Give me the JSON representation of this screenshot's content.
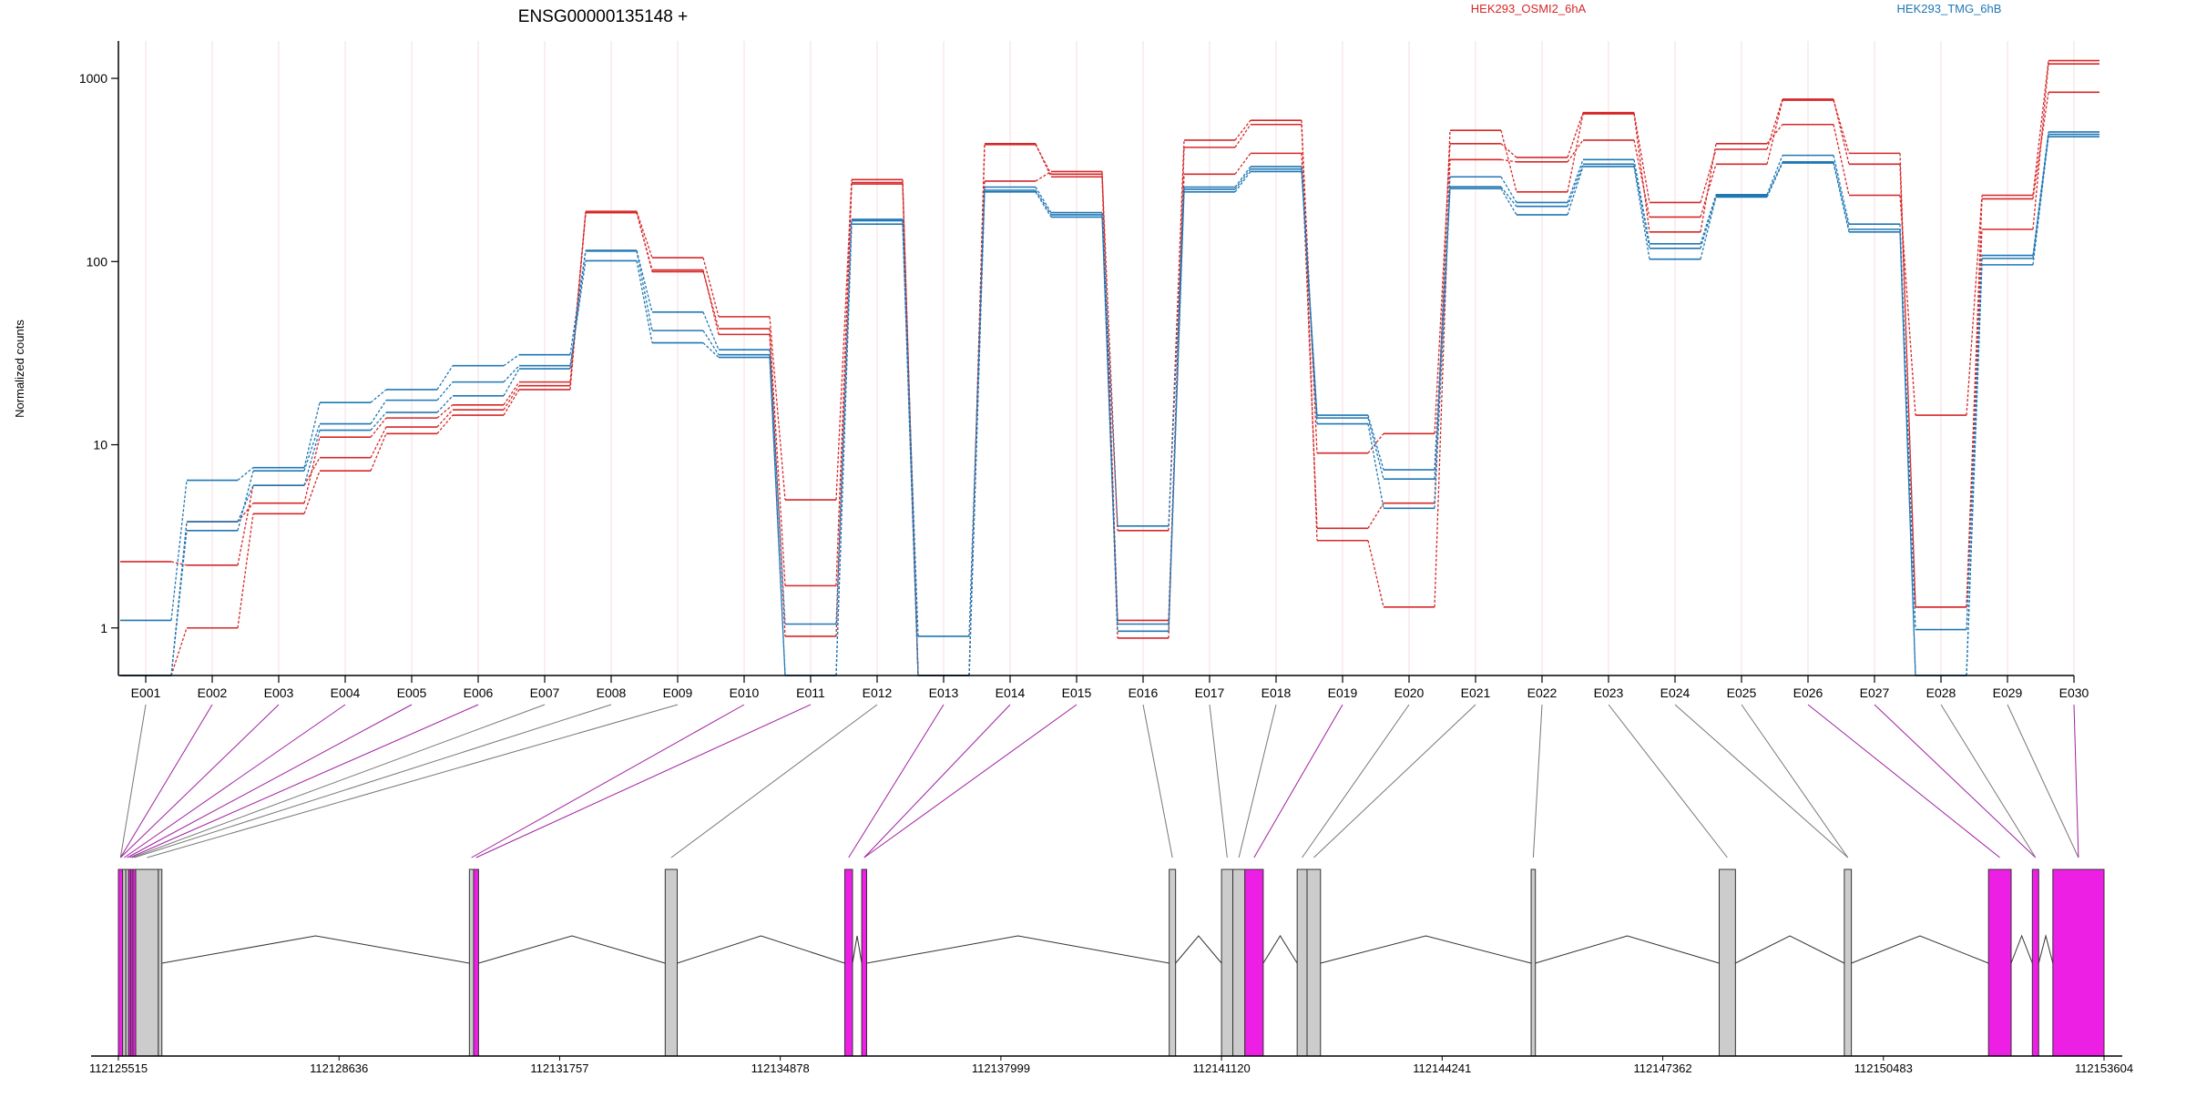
{
  "chart_data": {
    "type": "line",
    "title": "ENSG00000135148 +",
    "ylabel": "Normalized counts",
    "yscale": "log",
    "ylim": [
      0.55,
      1600
    ],
    "yticks": [
      1,
      10,
      100,
      1000
    ],
    "ytick_labels": [
      "1",
      "10",
      "100",
      "1000"
    ],
    "grid": "vertical",
    "legend": "top-right",
    "categories": [
      "E001",
      "E002",
      "E003",
      "E004",
      "E005",
      "E006",
      "E007",
      "E008",
      "E009",
      "E010",
      "E011",
      "E012",
      "E013",
      "E014",
      "E015",
      "E016",
      "E017",
      "E018",
      "E019",
      "E020",
      "E021",
      "E022",
      "E023",
      "E024",
      "E025",
      "E026",
      "E027",
      "E028",
      "E029",
      "E030"
    ],
    "groups": [
      {
        "name": "HEK293_OSMI2_6hA",
        "color": "#d62728"
      },
      {
        "name": "HEK293_TMG_6hB",
        "color": "#1f77b4"
      }
    ],
    "series": [
      {
        "group": 0,
        "values": [
          0.55,
          1.0,
          4.2,
          7.2,
          11.5,
          14.5,
          20,
          185,
          88,
          43,
          1.7,
          265,
          0.55,
          275,
          310,
          1.1,
          300,
          390,
          3.5,
          4.8,
          520,
          240,
          640,
          145,
          440,
          560,
          230,
          14.5,
          230,
          1250
        ]
      },
      {
        "group": 0,
        "values": [
          2.3,
          2.2,
          6.0,
          8.5,
          12.5,
          15.5,
          21,
          185,
          90,
          40,
          0.9,
          270,
          0.55,
          440,
          290,
          0.88,
          420,
          560,
          9.0,
          11.5,
          440,
          370,
          650,
          210,
          410,
          770,
          340,
          1.3,
          150,
          1200
        ]
      },
      {
        "group": 0,
        "values": [
          0.55,
          3.8,
          4.8,
          11,
          14,
          16.5,
          22,
          188,
          105,
          50,
          5.0,
          280,
          0.55,
          435,
          300,
          3.4,
          460,
          590,
          3.0,
          1.3,
          360,
          350,
          460,
          175,
          340,
          760,
          390,
          1.3,
          220,
          840
        ]
      },
      {
        "group": 1,
        "values": [
          1.1,
          6.4,
          7.5,
          17,
          20,
          27,
          31,
          115,
          53,
          33,
          1.05,
          170,
          0.9,
          255,
          185,
          3.6,
          255,
          330,
          14.5,
          7.3,
          290,
          210,
          360,
          125,
          232,
          380,
          160,
          0.98,
          108,
          510
        ]
      },
      {
        "group": 1,
        "values": [
          0.55,
          3.4,
          7.2,
          13,
          17.5,
          22,
          27,
          101,
          36,
          30,
          0.55,
          160,
          0.55,
          240,
          175,
          0.96,
          240,
          310,
          13,
          4.5,
          250,
          180,
          330,
          103,
          225,
          345,
          145,
          0.55,
          96,
          480
        ]
      },
      {
        "group": 1,
        "values": [
          0.55,
          3.8,
          6.0,
          12,
          15,
          18.5,
          26,
          114,
          42,
          31,
          0.55,
          167,
          0.55,
          245,
          180,
          1.05,
          248,
          320,
          14,
          6.5,
          256,
          200,
          340,
          118,
          228,
          350,
          150,
          0.55,
          104,
          495
        ]
      }
    ],
    "gene_model": {
      "coordinate_ticks": [
        "112125515",
        "112128636",
        "112131757",
        "112134878",
        "112137999",
        "112141120",
        "112144241",
        "112147362",
        "112150483",
        "112153604"
      ],
      "coord_range": [
        112125515,
        112153604
      ],
      "exons": [
        {
          "id": "E001",
          "start": 112125515,
          "end": 112125575,
          "significant": true
        },
        {
          "id": "E002",
          "start": 112125575,
          "end": 112125620,
          "significant": false
        },
        {
          "id": "E003",
          "start": 112125620,
          "end": 112125660,
          "significant": false
        },
        {
          "id": "E004",
          "start": 112125660,
          "end": 112125690,
          "significant": true
        },
        {
          "id": "E005",
          "start": 112125690,
          "end": 112125720,
          "significant": true
        },
        {
          "id": "E006",
          "start": 112125720,
          "end": 112125760,
          "significant": true
        },
        {
          "id": "E007",
          "start": 112125760,
          "end": 112126080,
          "significant": false
        },
        {
          "id": "E008",
          "start": 112126080,
          "end": 112126130,
          "significant": false
        },
        {
          "id": "E009",
          "start": 112130480,
          "end": 112130540,
          "significant": false
        },
        {
          "id": "E010",
          "start": 112130540,
          "end": 112130610,
          "significant": true
        },
        {
          "id": "E011",
          "start": 112133250,
          "end": 112133420,
          "significant": false
        },
        {
          "id": "E012",
          "start": 112135790,
          "end": 112135900,
          "significant": true
        },
        {
          "id": "E013",
          "start": 112136030,
          "end": 112136100,
          "significant": true
        },
        {
          "id": "E014",
          "start": 112140380,
          "end": 112140470,
          "significant": false
        },
        {
          "id": "E015",
          "start": 112141120,
          "end": 112141280,
          "significant": false
        },
        {
          "id": "E016",
          "start": 112141280,
          "end": 112141450,
          "significant": false
        },
        {
          "id": "E017",
          "start": 112141450,
          "end": 112141710,
          "significant": true
        },
        {
          "id": "E018",
          "start": 112142190,
          "end": 112142330,
          "significant": false
        },
        {
          "id": "E019",
          "start": 112142330,
          "end": 112142520,
          "significant": false
        },
        {
          "id": "E020",
          "start": 112145500,
          "end": 112145560,
          "significant": false
        },
        {
          "id": "E021",
          "start": 112148160,
          "end": 112148390,
          "significant": false
        },
        {
          "id": "E022",
          "start": 112149930,
          "end": 112150030,
          "significant": false
        },
        {
          "id": "E023",
          "start": 112151970,
          "end": 112152290,
          "significant": true
        },
        {
          "id": "E024",
          "start": 112152590,
          "end": 112152680,
          "significant": true
        },
        {
          "id": "E025",
          "start": 112152880,
          "end": 112153604,
          "significant": true
        }
      ],
      "connectors": [
        {
          "exon": "E001",
          "target": 0,
          "significant": false
        },
        {
          "exon": "E002",
          "target": 0,
          "significant": true
        },
        {
          "exon": "E003",
          "target": 0,
          "significant": true
        },
        {
          "exon": "E004",
          "target": 1,
          "significant": true
        },
        {
          "exon": "E005",
          "target": 2,
          "significant": true
        },
        {
          "exon": "E006",
          "target": 3,
          "significant": true
        },
        {
          "exon": "E007",
          "target": 4,
          "significant": false
        },
        {
          "exon": "E008",
          "target": 5,
          "significant": false
        },
        {
          "exon": "E009",
          "target": 6,
          "significant": false
        },
        {
          "exon": "E010",
          "target": 8,
          "significant": true
        },
        {
          "exon": "E011",
          "target": 9,
          "significant": true
        },
        {
          "exon": "E012",
          "target": 10,
          "significant": false
        },
        {
          "exon": "E013",
          "target": 11,
          "significant": true
        },
        {
          "exon": "E014",
          "target": 12,
          "significant": true
        },
        {
          "exon": "E015",
          "target": 12,
          "significant": true
        },
        {
          "exon": "E016",
          "target": 13,
          "significant": false
        },
        {
          "exon": "E017",
          "target": 14,
          "significant": false
        },
        {
          "exon": "E018",
          "target": 15,
          "significant": false
        },
        {
          "exon": "E019",
          "target": 16,
          "significant": true
        },
        {
          "exon": "E020",
          "target": 17,
          "significant": false
        },
        {
          "exon": "E021",
          "target": 18,
          "significant": false
        },
        {
          "exon": "E022",
          "target": 19,
          "significant": false
        },
        {
          "exon": "E023",
          "target": 20,
          "significant": false
        },
        {
          "exon": "E024",
          "target": 21,
          "significant": false
        },
        {
          "exon": "E025",
          "target": 21,
          "significant": false
        },
        {
          "exon": "E026",
          "target": 22,
          "significant": true
        },
        {
          "exon": "E027",
          "target": 23,
          "significant": true
        },
        {
          "exon": "E028",
          "target": 23,
          "significant": false
        },
        {
          "exon": "E029",
          "target": 24,
          "significant": false
        },
        {
          "exon": "E030",
          "target": 24,
          "significant": true
        }
      ]
    },
    "colors": {
      "significant": "#ee1fe4",
      "nonsignificant": "#cccccc",
      "connector_significant": "#a020a0",
      "connector_nonsignificant": "#777777",
      "grid": "#f4dede",
      "axis": "#000000"
    }
  }
}
